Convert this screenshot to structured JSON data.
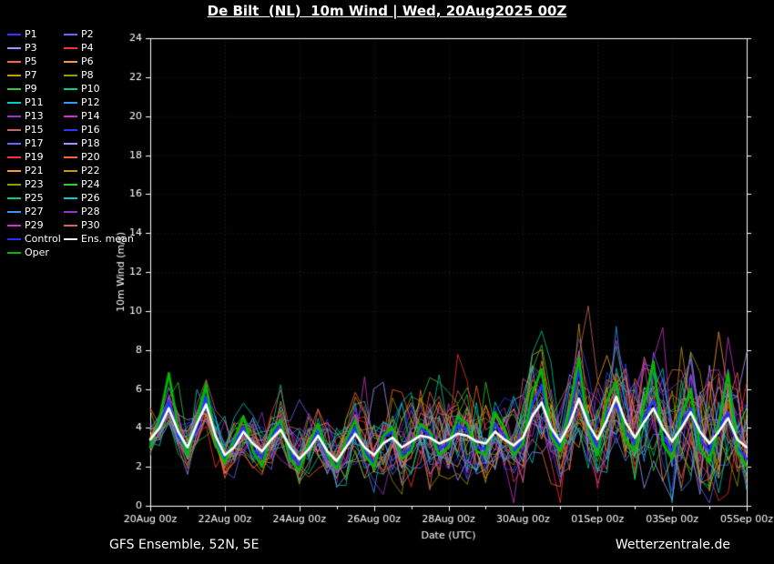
{
  "title": "De Bilt  (NL)  10m Wind | Wed, 20Aug2025 00Z",
  "footer_left": "GFS Ensemble, 52N, 5E",
  "footer_right": "Wetterzentrale.de",
  "legend": {
    "member_labels": [
      "P1",
      "P2",
      "P3",
      "P4",
      "P5",
      "P6",
      "P7",
      "P8",
      "P9",
      "P10",
      "P11",
      "P12",
      "P13",
      "P14",
      "P15",
      "P16",
      "P17",
      "P18",
      "P19",
      "P20",
      "P21",
      "P22",
      "P23",
      "P24",
      "P25",
      "P26",
      "P27",
      "P28",
      "P29",
      "P30"
    ],
    "extra": [
      {
        "label": "Control",
        "color": "#2233ff"
      },
      {
        "label": "Ens. mean",
        "color": "#ffffff"
      },
      {
        "label": "Oper",
        "color": "#00bb00"
      }
    ]
  },
  "chart_data": {
    "type": "line",
    "title": "De Bilt (NL) 10m Wind | Wed, 20Aug2025 00Z",
    "xlabel": "Date (UTC)",
    "ylabel": "10m Wind (m/s)",
    "ylim": [
      0,
      24
    ],
    "ytick_step": 2,
    "x_step_hours": 6,
    "x_minor_every": 4,
    "x_major_every": 8,
    "x_tick_labels": [
      "20Aug 00z",
      "22Aug 00z",
      "24Aug 00z",
      "26Aug 00z",
      "28Aug 00z",
      "30Aug 00z",
      "01Sep 00z",
      "03Sep 00z",
      "05Sep 00z"
    ],
    "grid": true,
    "legend_position": "top-left",
    "series": [
      {
        "name": "Ens. mean",
        "color": "#ffffff",
        "width": 2.6,
        "values": [
          3.4,
          4.0,
          5.0,
          3.8,
          3.0,
          4.2,
          5.2,
          3.6,
          2.6,
          3.0,
          3.8,
          3.2,
          2.8,
          3.4,
          3.9,
          3.0,
          2.4,
          2.9,
          3.6,
          2.8,
          2.3,
          3.0,
          3.7,
          3.0,
          2.6,
          3.2,
          3.5,
          3.0,
          3.3,
          3.6,
          3.5,
          3.2,
          3.4,
          3.7,
          3.6,
          3.3,
          3.2,
          3.8,
          3.4,
          3.1,
          3.5,
          4.6,
          5.3,
          4.0,
          3.3,
          4.2,
          5.5,
          4.2,
          3.4,
          4.4,
          5.6,
          4.3,
          3.5,
          4.3,
          5.0,
          4.0,
          3.3,
          4.0,
          4.8,
          3.8,
          3.2,
          3.8,
          4.5,
          3.4,
          3.0
        ]
      },
      {
        "name": "Control",
        "color": "#2233ff",
        "width": 2.6,
        "values": [
          3.2,
          4.2,
          5.4,
          3.6,
          2.8,
          4.0,
          5.6,
          3.4,
          2.4,
          3.2,
          4.0,
          2.9,
          2.5,
          3.6,
          4.2,
          2.7,
          2.1,
          3.0,
          3.8,
          2.5,
          2.0,
          3.2,
          4.0,
          2.8,
          2.2,
          3.5,
          3.8,
          2.6,
          3.0,
          4.0,
          3.6,
          2.9,
          3.2,
          4.1,
          3.9,
          3.0,
          2.9,
          4.2,
          3.6,
          2.8,
          3.4,
          5.2,
          6.2,
          3.8,
          3.0,
          4.6,
          7.0,
          4.0,
          3.0,
          4.8,
          5.2,
          3.8,
          3.2,
          4.6,
          5.4,
          3.6,
          2.8,
          4.2,
          5.0,
          3.4,
          2.8,
          4.0,
          4.8,
          3.0,
          2.4
        ]
      },
      {
        "name": "Oper",
        "color": "#00bb00",
        "width": 2.6,
        "values": [
          3.0,
          4.5,
          6.8,
          4.0,
          2.6,
          4.4,
          6.2,
          3.2,
          2.2,
          3.4,
          4.6,
          2.8,
          2.0,
          3.8,
          4.4,
          2.4,
          1.8,
          3.2,
          4.2,
          2.6,
          1.9,
          3.4,
          4.4,
          2.6,
          2.0,
          3.6,
          4.0,
          2.4,
          2.8,
          4.2,
          3.8,
          2.6,
          3.0,
          4.6,
          4.2,
          2.8,
          2.6,
          4.8,
          4.0,
          2.6,
          3.2,
          5.8,
          7.0,
          3.6,
          2.8,
          5.0,
          7.6,
          3.8,
          2.6,
          5.4,
          6.4,
          3.4,
          2.8,
          5.2,
          7.4,
          3.2,
          2.4,
          4.6,
          6.0,
          3.0,
          2.2,
          4.2,
          6.8,
          2.8,
          2.0
        ]
      }
    ],
    "ensemble_members": {
      "count": 30,
      "base": "Ens. mean",
      "seed": 12345,
      "spread_start": 0.7,
      "spread_end": 2.4,
      "value_clamp": [
        0.15,
        11.3
      ],
      "palette": [
        "#3333ff",
        "#6666ff",
        "#9999ff",
        "#ff3333",
        "#ff6633",
        "#ff9933",
        "#cc9900",
        "#999900",
        "#33cc33",
        "#00cc99",
        "#00cccc",
        "#3399ff",
        "#9933cc",
        "#cc33cc",
        "#cc6666"
      ]
    }
  }
}
